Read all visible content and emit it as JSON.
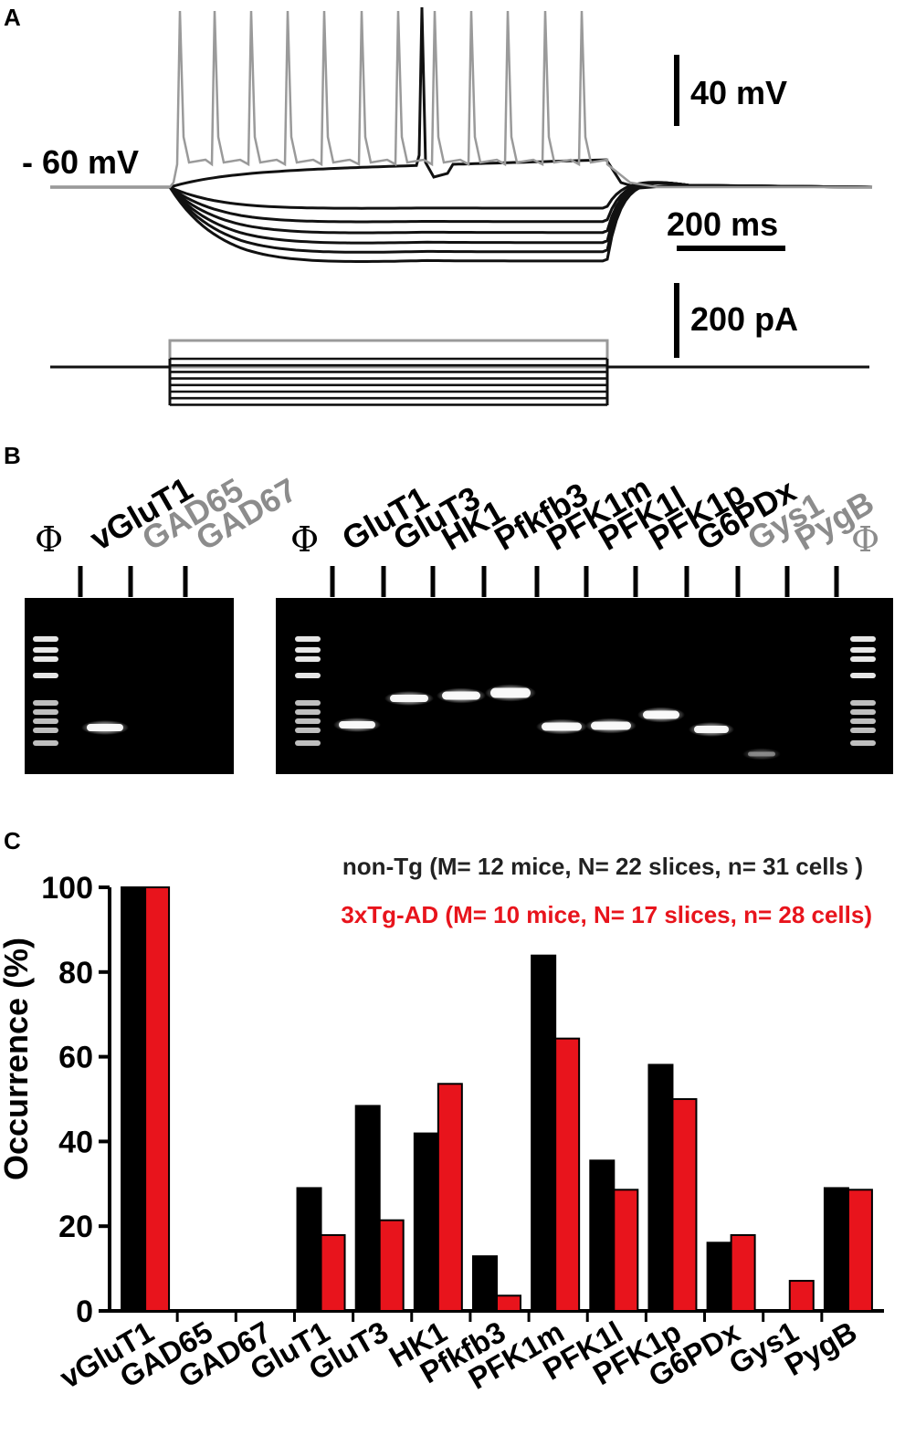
{
  "panels": {
    "a": {
      "letter": "A",
      "resting_label": "- 60 mV",
      "scale_voltage": "40 mV",
      "scale_time": "200 ms",
      "scale_current": "200 pA"
    },
    "b": {
      "letter": "B",
      "ladder_symbol": "Φ",
      "left_gel": {
        "lanes": [
          {
            "label": "vGluT1",
            "detected": true
          },
          {
            "label": "GAD65",
            "detected": false
          },
          {
            "label": "GAD67",
            "detected": false
          }
        ]
      },
      "right_gel": {
        "lanes": [
          {
            "label": "GluT1",
            "detected": true
          },
          {
            "label": "GluT3",
            "detected": true
          },
          {
            "label": "HK1",
            "detected": true
          },
          {
            "label": "Pfkfb3",
            "detected": true
          },
          {
            "label": "PFK1m",
            "detected": true
          },
          {
            "label": "PFK1l",
            "detected": true
          },
          {
            "label": "PFK1p",
            "detected": true
          },
          {
            "label": "G6PDx",
            "detected": true
          },
          {
            "label": "Gys1",
            "detected": false
          },
          {
            "label": "PygB",
            "detected": false
          }
        ]
      },
      "colors": {
        "detected": "#000000",
        "not_detected": "#8c8c8c"
      }
    },
    "c": {
      "letter": "C"
    }
  },
  "chart_data": {
    "type": "bar",
    "title": "",
    "xlabel": "",
    "ylabel": "Occurrence (%)",
    "ylim": [
      0,
      100
    ],
    "yticks": [
      "0",
      "20",
      "40",
      "60",
      "80",
      "100"
    ],
    "categories": [
      "vGluT1",
      "GAD65",
      "GAD67",
      "GluT1",
      "GluT3",
      "HK1",
      "Pfkfb3",
      "PFK1m",
      "PFK1l",
      "PFK1p",
      "G6PDx",
      "Gys1",
      "PygB"
    ],
    "series": [
      {
        "name": "non-Tg (M= 12 mice, N= 22 slices, n= 31 cells )",
        "color": "#000000",
        "values": [
          100,
          0,
          0,
          29,
          48.4,
          41.9,
          12.9,
          83.9,
          35.5,
          58.1,
          16.1,
          0,
          29
        ]
      },
      {
        "name": "3xTg-AD (M= 10 mice, N= 17 slices, n= 28 cells)",
        "color": "#e8141c",
        "values": [
          100,
          0,
          0,
          17.9,
          21.4,
          53.6,
          3.6,
          64.3,
          28.6,
          50,
          17.9,
          7.1,
          28.6
        ]
      }
    ],
    "legend_position": "top-right",
    "grid": false
  }
}
